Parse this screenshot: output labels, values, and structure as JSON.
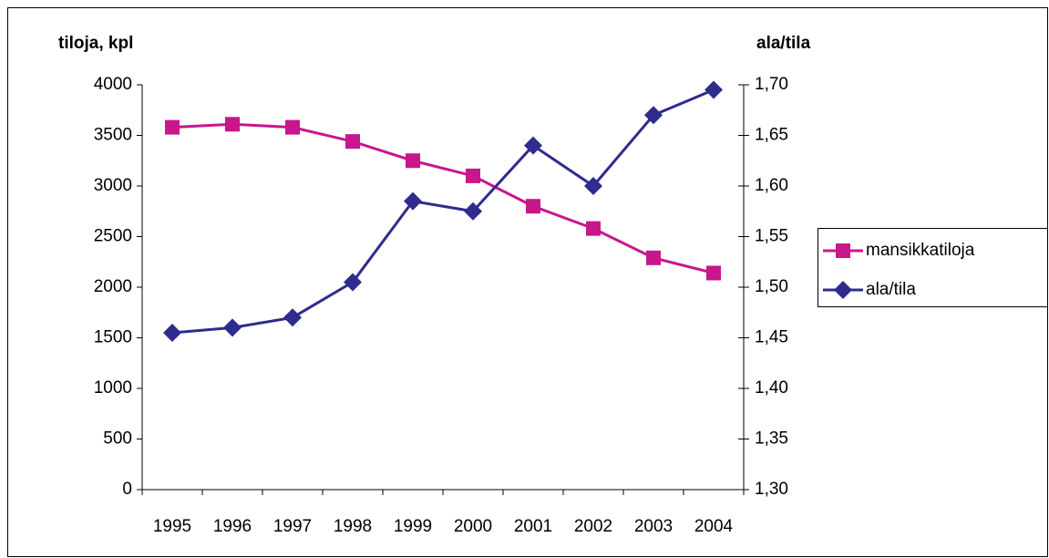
{
  "chart_data": {
    "type": "line",
    "ylabel": "tiloja, kpl",
    "y2label": "ala/tila",
    "categories": [
      "1995",
      "1996",
      "1997",
      "1998",
      "1999",
      "2000",
      "2001",
      "2002",
      "2003",
      "2004"
    ],
    "series": [
      {
        "name": "mansikkatiloja",
        "color": "#c8168c",
        "marker": "square",
        "values": [
          3580,
          3610,
          3580,
          3440,
          3250,
          3100,
          2800,
          2580,
          2290,
          2140
        ]
      },
      {
        "name": "ala/tila",
        "color": "#2e2c8c",
        "marker": "diamond",
        "axis": "y2",
        "values": [
          1.455,
          1.46,
          1.47,
          1.505,
          1.585,
          1.575,
          1.64,
          1.6,
          1.67,
          1.695
        ]
      }
    ],
    "ylim": [
      0,
      4000
    ],
    "yticks": [
      0,
      500,
      1000,
      1500,
      2000,
      2500,
      3000,
      3500,
      4000
    ],
    "y2lim": [
      1.3,
      1.7
    ],
    "y2ticks": [
      {
        "value": 1.3,
        "label": "1,30"
      },
      {
        "value": 1.35,
        "label": "1,35"
      },
      {
        "value": 1.4,
        "label": "1,40"
      },
      {
        "value": 1.45,
        "label": "1,45"
      },
      {
        "value": 1.5,
        "label": "1,50"
      },
      {
        "value": 1.55,
        "label": "1,55"
      },
      {
        "value": 1.6,
        "label": "1,60"
      },
      {
        "value": 1.65,
        "label": "1,65"
      },
      {
        "value": 1.7,
        "label": "1,70"
      }
    ],
    "legend": "right",
    "grid": false
  }
}
